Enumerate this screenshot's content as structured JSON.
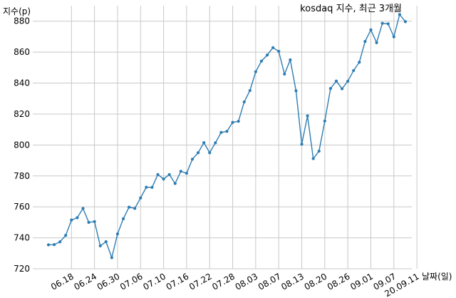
{
  "chart_data": {
    "type": "line",
    "title": "kosdaq 지수, 최근 3개월",
    "ylabel": "지수(p)",
    "xlabel": "날짜(일)",
    "ylim": [
      720,
      890
    ],
    "yticks": [
      720,
      740,
      760,
      780,
      800,
      820,
      840,
      860,
      880
    ],
    "grid": true,
    "color": "#2e7db3",
    "xtick_labels": [
      "06.18",
      "06.24",
      "06.30",
      "07.06",
      "07.10",
      "07.16",
      "07.22",
      "07.28",
      "08.03",
      "08.07",
      "08.13",
      "08.20",
      "08.26",
      "09.01",
      "09.07",
      "20.09.11"
    ],
    "xtick_index": [
      4,
      8,
      12,
      16,
      20,
      24,
      28,
      32,
      36,
      40,
      44,
      48,
      52,
      56,
      60,
      64
    ],
    "values": [
      735.5,
      735.6,
      737.4,
      741.6,
      751.5,
      753.0,
      759.0,
      750.0,
      750.5,
      734.8,
      737.5,
      727.2,
      742.5,
      752.3,
      759.8,
      759.0,
      765.8,
      772.7,
      772.6,
      780.9,
      778.0,
      780.9,
      775.1,
      783.0,
      781.7,
      790.8,
      795.0,
      801.5,
      795.0,
      801.4,
      808.1,
      808.8,
      814.6,
      815.3,
      827.8,
      835.2,
      847.3,
      854.2,
      858.1,
      862.9,
      860.5,
      845.8,
      855.0,
      835.0,
      800.5,
      818.8,
      791.2,
      796.0,
      815.5,
      836.5,
      841.3,
      836.3,
      841.2,
      848.1,
      853.5,
      866.9,
      874.4,
      866.1,
      878.6,
      878.3,
      869.9,
      884.3,
      879.7
    ]
  }
}
